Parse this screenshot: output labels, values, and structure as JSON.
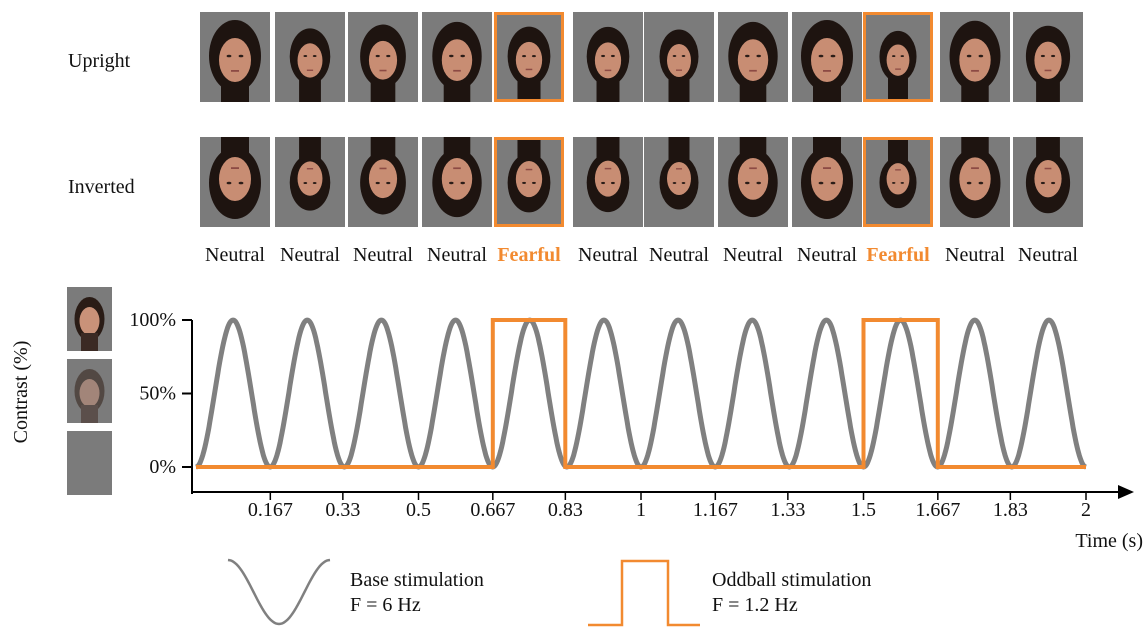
{
  "rows": {
    "upright_label": "Upright",
    "inverted_label": "Inverted"
  },
  "sequence": [
    {
      "label": "Neutral",
      "oddball": false,
      "scale": 1.0
    },
    {
      "label": "Neutral",
      "oddball": false,
      "scale": 0.78
    },
    {
      "label": "Neutral",
      "oddball": false,
      "scale": 0.88
    },
    {
      "label": "Neutral",
      "oddball": false,
      "scale": 0.95
    },
    {
      "label": "Fearful",
      "oddball": true,
      "scale": 0.9
    },
    {
      "label": "Neutral",
      "oddball": false,
      "scale": 0.82
    },
    {
      "label": "Neutral",
      "oddball": false,
      "scale": 0.75
    },
    {
      "label": "Neutral",
      "oddball": false,
      "scale": 0.95
    },
    {
      "label": "Neutral",
      "oddball": false,
      "scale": 1.0
    },
    {
      "label": "Fearful",
      "oddball": true,
      "scale": 0.78
    },
    {
      "label": "Neutral",
      "oddball": false,
      "scale": 0.98
    },
    {
      "label": "Neutral",
      "oddball": false,
      "scale": 0.85
    }
  ],
  "chart_data": {
    "type": "line",
    "ylabel": "Contrast (%)",
    "xlabel": "Time (s)",
    "xlim": [
      0,
      2
    ],
    "ylim": [
      0,
      100
    ],
    "x_ticks": [
      "0.167",
      "0.33",
      "0.5",
      "0.667",
      "0.83",
      "1",
      "1.167",
      "1.33",
      "1.5",
      "1.667",
      "1.83",
      "2"
    ],
    "x_tick_values": [
      0.167,
      0.33,
      0.5,
      0.667,
      0.83,
      1,
      1.167,
      1.33,
      1.5,
      1.667,
      1.83,
      2
    ],
    "y_ticks": [
      "0%",
      "50%",
      "100%"
    ],
    "y_tick_values": [
      0,
      50,
      100
    ],
    "series": [
      {
        "name": "Base stimulation",
        "kind": "sine",
        "frequency_hz": 6,
        "min": 0,
        "max": 100,
        "color": "#808080"
      },
      {
        "name": "Oddball stimulation",
        "kind": "square",
        "frequency_hz": 1.2,
        "high_intervals": [
          [
            0.667,
            0.83
          ],
          [
            1.5,
            1.667
          ]
        ],
        "min": 0,
        "max": 100,
        "color": "#f28a30"
      }
    ]
  },
  "legend": {
    "base_title": "Base stimulation",
    "base_freq": "F = 6 Hz",
    "oddball_title": "Oddball stimulation",
    "oddball_freq": "F = 1.2 Hz"
  },
  "colors": {
    "accent": "#f28a30",
    "sine": "#808080",
    "background_gray": "#7b7b7b"
  }
}
